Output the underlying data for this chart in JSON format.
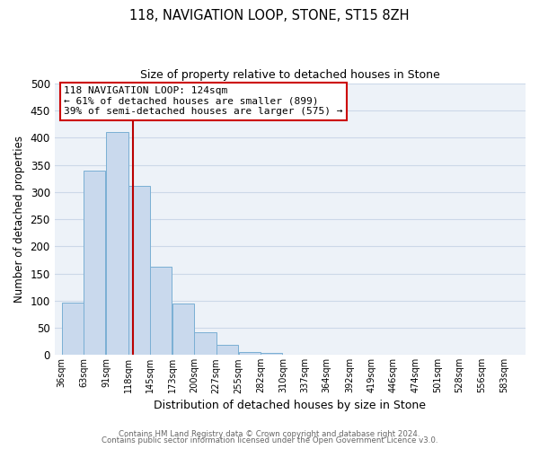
{
  "title1": "118, NAVIGATION LOOP, STONE, ST15 8ZH",
  "title2": "Size of property relative to detached houses in Stone",
  "xlabel": "Distribution of detached houses by size in Stone",
  "ylabel": "Number of detached properties",
  "bar_left_edges": [
    36,
    63,
    91,
    118,
    145,
    173,
    200,
    227,
    255,
    282,
    310,
    337,
    364,
    392,
    419,
    446,
    474,
    501,
    528,
    556
  ],
  "bar_heights": [
    97,
    340,
    411,
    311,
    163,
    94,
    42,
    19,
    5,
    3,
    0,
    0,
    0,
    0,
    0,
    0,
    0,
    1,
    0,
    1
  ],
  "bin_width": 27,
  "bar_color": "#c9d9ed",
  "bar_edge_color": "#7aafd4",
  "subject_line_x": 124,
  "subject_line_color": "#bb0000",
  "ylim": [
    0,
    500
  ],
  "xlim": [
    27,
    610
  ],
  "tick_labels": [
    "36sqm",
    "63sqm",
    "91sqm",
    "118sqm",
    "145sqm",
    "173sqm",
    "200sqm",
    "227sqm",
    "255sqm",
    "282sqm",
    "310sqm",
    "337sqm",
    "364sqm",
    "392sqm",
    "419sqm",
    "446sqm",
    "474sqm",
    "501sqm",
    "528sqm",
    "556sqm",
    "583sqm"
  ],
  "tick_positions": [
    36,
    63,
    91,
    118,
    145,
    173,
    200,
    227,
    255,
    282,
    310,
    337,
    364,
    392,
    419,
    446,
    474,
    501,
    528,
    556,
    583
  ],
  "annotation_line1": "118 NAVIGATION LOOP: 124sqm",
  "annotation_line2": "← 61% of detached houses are smaller (899)",
  "annotation_line3": "39% of semi-detached houses are larger (575) →",
  "footer1": "Contains HM Land Registry data © Crown copyright and database right 2024.",
  "footer2": "Contains public sector information licensed under the Open Government Licence v3.0.",
  "grid_color": "#ccd8e8",
  "bg_color": "#edf2f8"
}
